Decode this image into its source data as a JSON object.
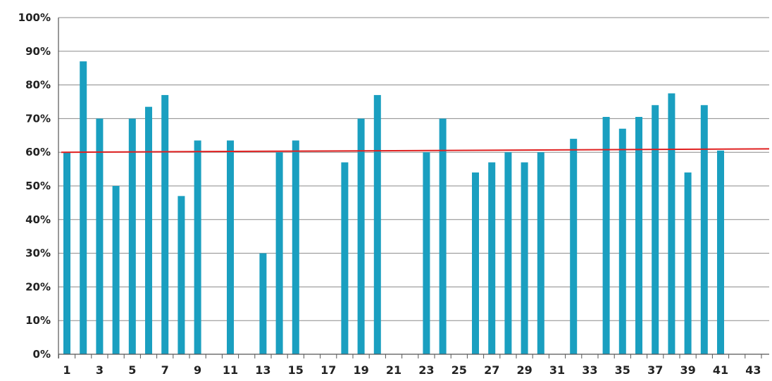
{
  "chart_data": {
    "type": "bar",
    "title": "",
    "xlabel": "",
    "ylabel": "",
    "ylim": [
      0,
      100
    ],
    "y_tick_format": "percent",
    "y_ticks": [
      "0%",
      "10%",
      "20%",
      "30%",
      "40%",
      "50%",
      "60%",
      "70%",
      "80%",
      "90%",
      "100%"
    ],
    "categories": [
      "1",
      "2",
      "3",
      "4",
      "5",
      "6",
      "7",
      "8",
      "9",
      "10",
      "11",
      "12",
      "13",
      "14",
      "15",
      "16",
      "17",
      "18",
      "19",
      "20",
      "21",
      "22",
      "23",
      "24",
      "25",
      "26",
      "27",
      "28",
      "29",
      "30",
      "31",
      "32",
      "33",
      "34",
      "35",
      "36",
      "37",
      "38",
      "39",
      "40",
      "41",
      "42",
      "43"
    ],
    "x_tick_labels": [
      "1",
      "3",
      "5",
      "7",
      "9",
      "11",
      "13",
      "15",
      "17",
      "19",
      "21",
      "23",
      "25",
      "27",
      "29",
      "31",
      "33",
      "35",
      "37",
      "39",
      "41",
      "43"
    ],
    "values": [
      60,
      87,
      70,
      50,
      70,
      73.5,
      77,
      47,
      63.5,
      null,
      63.5,
      null,
      30,
      60,
      63.5,
      null,
      null,
      57,
      70,
      77,
      null,
      null,
      60,
      70,
      null,
      54,
      57,
      60,
      57,
      60,
      null,
      64,
      null,
      70.5,
      67,
      70.5,
      74,
      77.5,
      54,
      74,
      60.5,
      null,
      null
    ],
    "reference_line": {
      "start": 60,
      "end": 61,
      "color": "#e02020"
    },
    "bar_color": "#1a9fc0",
    "grid": true,
    "legend": "none"
  }
}
